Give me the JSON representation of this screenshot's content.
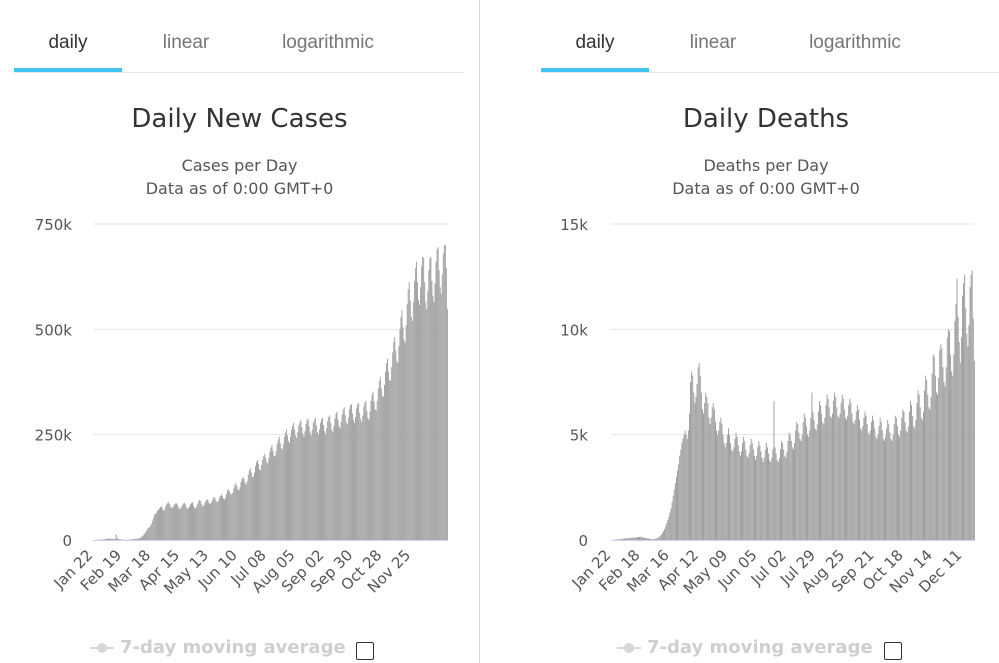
{
  "colors": {
    "accent_tab": "#3fc3f0",
    "bar": "#9b9b9b",
    "grid": "#e6e6e6",
    "axis_line": "#ccd6eb"
  },
  "panels": [
    {
      "tabs": [
        {
          "label": "daily",
          "active": true
        },
        {
          "label": "linear",
          "active": false
        },
        {
          "label": "logarithmic",
          "active": false
        }
      ],
      "legend": {
        "label": "7-day moving average",
        "checked": false,
        "icon": "moving-average-line-icon"
      }
    },
    {
      "tabs": [
        {
          "label": "daily",
          "active": true
        },
        {
          "label": "linear",
          "active": false
        },
        {
          "label": "logarithmic",
          "active": false
        }
      ],
      "legend": {
        "label": "7-day moving average",
        "checked": false,
        "icon": "moving-average-line-icon"
      }
    }
  ],
  "chart_data": [
    {
      "type": "bar",
      "title": "Daily New Cases",
      "subtitle": "Cases per Day",
      "subtitle2": "Data as of 0:00 GMT+0",
      "x_start": "Jan 22",
      "x_end": "Dec 16",
      "x_ticks": [
        "Jan 22",
        "Feb 19",
        "Mar 18",
        "Apr 15",
        "May 13",
        "Jun 10",
        "Jul 08",
        "Aug 05",
        "Sep 02",
        "Sep 30",
        "Oct 28",
        "Nov 25"
      ],
      "y_ticks": [
        "0",
        "250k",
        "500k",
        "750k"
      ],
      "ylim": [
        0,
        750000
      ],
      "grid": true,
      "series": [
        {
          "values": [
            0,
            0,
            100,
            200,
            300,
            500,
            700,
            800,
            1000,
            1200,
            1500,
            2000,
            2500,
            3000,
            3200,
            3500,
            3200,
            3000,
            2800,
            2500,
            2500,
            2200,
            14000,
            5000,
            2600,
            2200,
            1800,
            1500,
            800,
            600,
            500,
            400,
            300,
            500,
            800,
            1000,
            1200,
            1500,
            1800,
            2000,
            2200,
            2600,
            3000,
            3500,
            4000,
            5000,
            6000,
            8000,
            10000,
            14000,
            17000,
            20000,
            25000,
            28000,
            30000,
            33000,
            38000,
            45000,
            52000,
            60000,
            62000,
            65000,
            70000,
            72000,
            75000,
            78000,
            80000,
            75000,
            70000,
            72000,
            80000,
            85000,
            88000,
            90000,
            85000,
            78000,
            76000,
            78000,
            82000,
            85000,
            88000,
            86000,
            80000,
            75000,
            74000,
            78000,
            82000,
            86000,
            88000,
            85000,
            78000,
            74000,
            76000,
            80000,
            85000,
            88000,
            90000,
            82000,
            76000,
            75000,
            80000,
            86000,
            92000,
            95000,
            92000,
            85000,
            80000,
            82000,
            88000,
            93000,
            97000,
            95000,
            88000,
            85000,
            88000,
            93000,
            100000,
            102000,
            98000,
            92000,
            90000,
            93000,
            100000,
            105000,
            108000,
            104000,
            98000,
            96000,
            100000,
            110000,
            118000,
            120000,
            115000,
            110000,
            108000,
            112000,
            122000,
            130000,
            135000,
            128000,
            120000,
            118000,
            125000,
            138000,
            145000,
            150000,
            145000,
            135000,
            132000,
            140000,
            155000,
            165000,
            170000,
            160000,
            150000,
            150000,
            160000,
            175000,
            185000,
            190000,
            180000,
            168000,
            166000,
            178000,
            190000,
            200000,
            205000,
            195000,
            185000,
            182000,
            195000,
            210000,
            220000,
            225000,
            212000,
            200000,
            198000,
            210000,
            228000,
            238000,
            245000,
            230000,
            218000,
            215000,
            228000,
            245000,
            255000,
            262000,
            248000,
            235000,
            230000,
            245000,
            262000,
            270000,
            278000,
            262000,
            248000,
            242000,
            256000,
            272000,
            280000,
            285000,
            268000,
            252000,
            245000,
            258000,
            275000,
            285000,
            288000,
            270000,
            255000,
            248000,
            262000,
            278000,
            285000,
            290000,
            272000,
            256000,
            250000,
            262000,
            278000,
            286000,
            290000,
            273000,
            258000,
            252000,
            265000,
            282000,
            292000,
            296000,
            278000,
            262000,
            256000,
            270000,
            288000,
            300000,
            305000,
            286000,
            270000,
            265000,
            280000,
            298000,
            310000,
            315000,
            296000,
            280000,
            275000,
            290000,
            310000,
            320000,
            322000,
            300000,
            285000,
            278000,
            292000,
            312000,
            322000,
            325000,
            302000,
            288000,
            280000,
            295000,
            316000,
            326000,
            330000,
            306000,
            290000,
            285000,
            305000,
            330000,
            345000,
            352000,
            328000,
            310000,
            308000,
            330000,
            360000,
            378000,
            388000,
            360000,
            342000,
            340000,
            368000,
            400000,
            420000,
            430000,
            400000,
            380000,
            378000,
            410000,
            445000,
            470000,
            482000,
            450000,
            425000,
            420000,
            460000,
            500000,
            530000,
            545000,
            505000,
            475000,
            468000,
            510000,
            560000,
            595000,
            612000,
            568000,
            530000,
            520000,
            565000,
            615000,
            645000,
            660000,
            612000,
            570000,
            558000,
            600000,
            650000,
            672000,
            670000,
            612000,
            565000,
            548000,
            590000,
            640000,
            668000,
            672000,
            615000,
            580000,
            565000,
            610000,
            660000,
            690000,
            695000,
            640000,
            600000,
            585000,
            630000,
            680000,
            700000,
            700000,
            645000,
            548000
          ]
        }
      ]
    },
    {
      "type": "bar",
      "title": "Daily Deaths",
      "subtitle": "Deaths per Day",
      "subtitle2": "Data as of 0:00 GMT+0",
      "x_start": "Jan 22",
      "x_end": "Dec 22",
      "x_ticks": [
        "Jan 22",
        "Feb 18",
        "Mar 16",
        "Apr 12",
        "May 09",
        "Jun 05",
        "Jul 02",
        "Jul 29",
        "Aug 25",
        "Sep 21",
        "Oct 18",
        "Nov 14",
        "Dec 11"
      ],
      "y_ticks": [
        "0",
        "5k",
        "10k",
        "15k"
      ],
      "ylim": [
        0,
        15000
      ],
      "grid": true,
      "series": [
        {
          "values": [
            0,
            0,
            0,
            10,
            20,
            25,
            30,
            30,
            40,
            45,
            50,
            60,
            65,
            70,
            85,
            90,
            95,
            100,
            105,
            110,
            115,
            120,
            110,
            120,
            130,
            140,
            150,
            160,
            140,
            120,
            110,
            100,
            90,
            80,
            70,
            60,
            50,
            40,
            30,
            40,
            50,
            60,
            80,
            100,
            150,
            200,
            260,
            330,
            420,
            520,
            650,
            800,
            950,
            1100,
            1300,
            1500,
            1800,
            2100,
            2400,
            2700,
            3000,
            3300,
            3600,
            4000,
            4300,
            4600,
            4800,
            5000,
            5200,
            5000,
            4800,
            5200,
            6000,
            7500,
            8000,
            7800,
            7000,
            6500,
            6800,
            7400,
            8200,
            8400,
            7800,
            7000,
            6200,
            6000,
            6500,
            7000,
            6800,
            6500,
            5800,
            5500,
            5800,
            6300,
            6500,
            6200,
            5600,
            5200,
            5000,
            5200,
            5600,
            5800,
            5500,
            5000,
            4600,
            4400,
            4600,
            5000,
            5300,
            5000,
            4600,
            4300,
            4200,
            4400,
            4800,
            5100,
            4900,
            4500,
            4200,
            4000,
            4200,
            4600,
            4900,
            4700,
            4300,
            4000,
            3900,
            4100,
            4500,
            4800,
            4600,
            4300,
            4000,
            3800,
            4000,
            4400,
            4700,
            4500,
            4200,
            3900,
            3700,
            3900,
            4300,
            4600,
            4400,
            4100,
            3800,
            3700,
            3900,
            4300,
            6600,
            4400,
            4100,
            3800,
            3700,
            3900,
            4300,
            4700,
            4600,
            4300,
            4000,
            3900,
            4200,
            4700,
            5100,
            5000,
            4700,
            4400,
            4300,
            4600,
            5200,
            5600,
            5500,
            5100,
            4800,
            4700,
            5000,
            5600,
            6000,
            5800,
            5400,
            5000,
            4900,
            5200,
            5800,
            7000,
            6100,
            5700,
            5300,
            5200,
            5500,
            6100,
            6600,
            6400,
            6000,
            5600,
            5500,
            5800,
            6400,
            6900,
            6700,
            6300,
            5900,
            5800,
            6000,
            6600,
            7000,
            6800,
            6300,
            5900,
            5800,
            6000,
            6500,
            6900,
            6700,
            6200,
            5800,
            5700,
            5900,
            6400,
            6700,
            6500,
            6000,
            5600,
            5500,
            5700,
            6100,
            6400,
            6200,
            5700,
            5300,
            5200,
            5400,
            5800,
            6100,
            5900,
            5500,
            5100,
            5000,
            5200,
            5600,
            5900,
            5700,
            5300,
            4900,
            4800,
            5000,
            5400,
            5800,
            5600,
            5200,
            4800,
            4700,
            4900,
            5300,
            5700,
            5500,
            5100,
            4800,
            4700,
            5000,
            5500,
            5900,
            5800,
            5400,
            5000,
            4900,
            5200,
            5800,
            6200,
            6100,
            5600,
            5200,
            5100,
            5400,
            6100,
            6600,
            6400,
            5900,
            5400,
            5300,
            5700,
            6500,
            7100,
            6900,
            6300,
            5800,
            5700,
            6100,
            7100,
            7800,
            7600,
            6900,
            6300,
            6200,
            6800,
            7900,
            8800,
            8700,
            7800,
            7000,
            6900,
            7700,
            9000,
            9300,
            9100,
            8200,
            7500,
            7300,
            8200,
            9600,
            10000,
            9900,
            8800,
            8000,
            7800,
            8800,
            10400,
            11200,
            12400,
            10600,
            9400,
            8400,
            9600,
            11600,
            12200,
            12600,
            11000,
            9800,
            9200,
            10200,
            12000,
            12600,
            12800,
            10500,
            8500
          ]
        }
      ]
    }
  ]
}
